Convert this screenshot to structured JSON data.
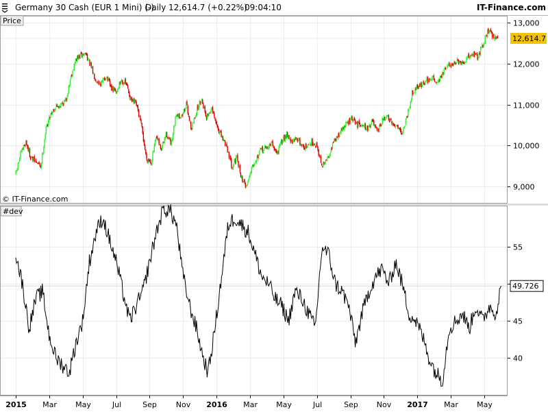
{
  "header": {
    "instrument": "Germany 30 Cash (EUR 1 Mini) (-)",
    "period": "Daily",
    "last": "12,614.7 (+0.22%)",
    "time": "09:04:10",
    "brand": "IT-Finance.com"
  },
  "copyright": "© IT-Finance.com",
  "price_pane": {
    "title": "Price",
    "last_badge": "12,614.7",
    "badge_color": "#f5c400",
    "up_color": "#33ee33",
    "down_color": "#dd0000"
  },
  "dev_pane": {
    "title": "#dev",
    "last_badge": "49.726",
    "line_color": "#000000"
  },
  "x_axis": {
    "labels": [
      {
        "label": "2015",
        "t": 0.0,
        "bold": true
      },
      {
        "label": "Mar",
        "t": 2.0,
        "bold": false
      },
      {
        "label": "May",
        "t": 4.0,
        "bold": false
      },
      {
        "label": "Jul",
        "t": 6.0,
        "bold": false
      },
      {
        "label": "Sep",
        "t": 8.0,
        "bold": false
      },
      {
        "label": "Nov",
        "t": 10.0,
        "bold": false
      },
      {
        "label": "2016",
        "t": 12.0,
        "bold": true
      },
      {
        "label": "Mar",
        "t": 14.0,
        "bold": false
      },
      {
        "label": "May",
        "t": 16.0,
        "bold": false
      },
      {
        "label": "Jul",
        "t": 18.0,
        "bold": false
      },
      {
        "label": "Sep",
        "t": 20.0,
        "bold": false
      },
      {
        "label": "Nov",
        "t": 22.0,
        "bold": false
      },
      {
        "label": "2017",
        "t": 24.0,
        "bold": true
      },
      {
        "label": "Mar",
        "t": 26.0,
        "bold": false
      },
      {
        "label": "May",
        "t": 28.0,
        "bold": false
      }
    ]
  },
  "chart_data": [
    {
      "type": "candlestick",
      "title": "Price",
      "yticks": [
        {
          "v": 9000,
          "label": "9,000"
        },
        {
          "v": 10000,
          "label": "10,000"
        },
        {
          "v": 11000,
          "label": "11,000"
        },
        {
          "v": 12000,
          "label": "12,000"
        },
        {
          "v": 13000,
          "label": "13,000"
        }
      ],
      "ylim": [
        8600,
        13150
      ],
      "last_value": 12614.7,
      "close_anchors": [
        [
          0.0,
          9300
        ],
        [
          0.3,
          9800
        ],
        [
          0.6,
          10100
        ],
        [
          0.9,
          9700
        ],
        [
          1.2,
          9600
        ],
        [
          1.5,
          9500
        ],
        [
          1.8,
          10400
        ],
        [
          2.1,
          10800
        ],
        [
          2.4,
          10950
        ],
        [
          2.7,
          11000
        ],
        [
          3.0,
          11100
        ],
        [
          3.3,
          11700
        ],
        [
          3.6,
          12100
        ],
        [
          3.9,
          12200
        ],
        [
          4.2,
          12250
        ],
        [
          4.5,
          11900
        ],
        [
          4.8,
          11600
        ],
        [
          5.1,
          11500
        ],
        [
          5.4,
          11700
        ],
        [
          5.7,
          11400
        ],
        [
          6.0,
          11300
        ],
        [
          6.3,
          11600
        ],
        [
          6.6,
          11500
        ],
        [
          6.9,
          11100
        ],
        [
          7.2,
          11000
        ],
        [
          7.5,
          10500
        ],
        [
          7.8,
          9700
        ],
        [
          8.1,
          9600
        ],
        [
          8.4,
          10200
        ],
        [
          8.7,
          9900
        ],
        [
          9.0,
          10300
        ],
        [
          9.3,
          10000
        ],
        [
          9.6,
          10800
        ],
        [
          9.9,
          10700
        ],
        [
          10.2,
          11000
        ],
        [
          10.5,
          10400
        ],
        [
          10.8,
          10850
        ],
        [
          11.1,
          11150
        ],
        [
          11.4,
          10700
        ],
        [
          11.7,
          10900
        ],
        [
          12.0,
          10500
        ],
        [
          12.3,
          10200
        ],
        [
          12.6,
          10000
        ],
        [
          12.9,
          9500
        ],
        [
          13.2,
          9700
        ],
        [
          13.5,
          9200
        ],
        [
          13.8,
          9000
        ],
        [
          14.1,
          9500
        ],
        [
          14.4,
          9700
        ],
        [
          14.7,
          9900
        ],
        [
          15.0,
          9950
        ],
        [
          15.3,
          10050
        ],
        [
          15.6,
          9800
        ],
        [
          15.9,
          10100
        ],
        [
          16.2,
          10300
        ],
        [
          16.5,
          10050
        ],
        [
          16.8,
          10200
        ],
        [
          17.1,
          10000
        ],
        [
          17.4,
          9950
        ],
        [
          17.7,
          10100
        ],
        [
          18.0,
          10000
        ],
        [
          18.3,
          9500
        ],
        [
          18.6,
          9650
        ],
        [
          18.9,
          10000
        ],
        [
          19.2,
          10200
        ],
        [
          19.5,
          10400
        ],
        [
          19.8,
          10550
        ],
        [
          20.1,
          10650
        ],
        [
          20.4,
          10500
        ],
        [
          20.7,
          10550
        ],
        [
          21.0,
          10400
        ],
        [
          21.3,
          10600
        ],
        [
          21.6,
          10300
        ],
        [
          21.9,
          10600
        ],
        [
          22.2,
          10700
        ],
        [
          22.5,
          10500
        ],
        [
          22.8,
          10500
        ],
        [
          23.1,
          10300
        ],
        [
          23.4,
          10750
        ],
        [
          23.7,
          11300
        ],
        [
          24.0,
          11450
        ],
        [
          24.3,
          11500
        ],
        [
          24.6,
          11600
        ],
        [
          24.9,
          11650
        ],
        [
          25.2,
          11550
        ],
        [
          25.5,
          11750
        ],
        [
          25.8,
          11950
        ],
        [
          26.1,
          12000
        ],
        [
          26.4,
          12050
        ],
        [
          26.7,
          11950
        ],
        [
          27.0,
          12150
        ],
        [
          27.3,
          12250
        ],
        [
          27.6,
          12150
        ],
        [
          27.9,
          12450
        ],
        [
          28.2,
          12800
        ],
        [
          28.5,
          12700
        ],
        [
          28.8,
          12614.7
        ]
      ]
    },
    {
      "type": "line",
      "title": "#dev",
      "yticks": [
        {
          "v": 40,
          "label": "40"
        },
        {
          "v": 45,
          "label": "45"
        },
        {
          "v": 50,
          "label": "50"
        },
        {
          "v": 55,
          "label": "55"
        }
      ],
      "ylim": [
        35.0,
        60.5
      ],
      "last_value": 49.726,
      "anchors": [
        [
          0.0,
          54
        ],
        [
          0.4,
          50
        ],
        [
          0.8,
          44
        ],
        [
          1.2,
          48
        ],
        [
          1.6,
          49
        ],
        [
          2.0,
          43
        ],
        [
          2.4,
          40
        ],
        [
          2.8,
          39
        ],
        [
          3.2,
          38
        ],
        [
          3.6,
          42
        ],
        [
          4.0,
          45
        ],
        [
          4.4,
          53
        ],
        [
          4.8,
          57
        ],
        [
          5.2,
          59
        ],
        [
          5.6,
          56
        ],
        [
          6.0,
          53
        ],
        [
          6.4,
          49
        ],
        [
          6.8,
          45
        ],
        [
          7.2,
          47
        ],
        [
          7.6,
          49
        ],
        [
          8.0,
          53
        ],
        [
          8.4,
          57
        ],
        [
          8.8,
          60
        ],
        [
          9.2,
          60
        ],
        [
          9.6,
          58
        ],
        [
          10.0,
          51
        ],
        [
          10.4,
          47
        ],
        [
          10.8,
          44
        ],
        [
          11.2,
          40
        ],
        [
          11.5,
          38
        ],
        [
          11.9,
          44
        ],
        [
          12.3,
          51
        ],
        [
          12.7,
          58
        ],
        [
          13.1,
          59
        ],
        [
          13.5,
          58
        ],
        [
          13.9,
          57
        ],
        [
          14.3,
          54
        ],
        [
          14.7,
          51
        ],
        [
          15.1,
          50
        ],
        [
          15.5,
          48
        ],
        [
          15.9,
          47
        ],
        [
          16.3,
          45
        ],
        [
          16.7,
          49
        ],
        [
          17.1,
          48
        ],
        [
          17.5,
          46
        ],
        [
          17.9,
          44
        ],
        [
          18.3,
          55
        ],
        [
          18.7,
          54
        ],
        [
          19.1,
          50
        ],
        [
          19.5,
          49
        ],
        [
          19.9,
          47
        ],
        [
          20.3,
          42
        ],
        [
          20.7,
          46
        ],
        [
          21.1,
          49
        ],
        [
          21.5,
          51
        ],
        [
          21.9,
          52
        ],
        [
          22.3,
          50
        ],
        [
          22.7,
          53
        ],
        [
          23.1,
          50
        ],
        [
          23.5,
          46
        ],
        [
          23.9,
          45
        ],
        [
          24.3,
          43
        ],
        [
          24.7,
          40
        ],
        [
          25.1,
          38
        ],
        [
          25.5,
          37
        ],
        [
          25.9,
          44
        ],
        [
          26.3,
          45
        ],
        [
          26.7,
          46
        ],
        [
          27.1,
          44
        ],
        [
          27.5,
          47
        ],
        [
          27.9,
          45
        ],
        [
          28.3,
          47
        ],
        [
          28.7,
          46
        ],
        [
          29.0,
          49.726
        ]
      ]
    }
  ]
}
